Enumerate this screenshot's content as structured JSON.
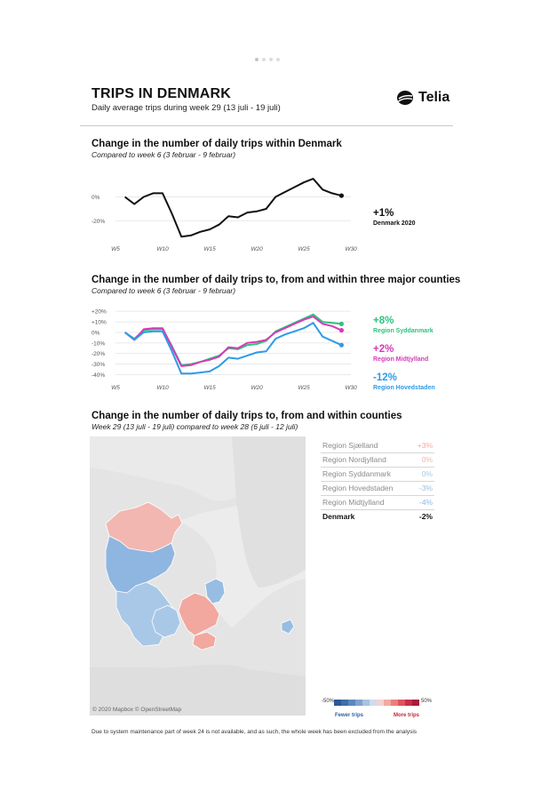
{
  "header": {
    "title": "TRIPS IN DENMARK",
    "subtitle": "Daily average trips during week 29 (13 juli - 19 juli)",
    "logo_text": "Telia"
  },
  "chart_data": [
    {
      "type": "line",
      "title": "Change in the number of daily trips within Denmark",
      "subtitle": "Compared to week 6 (3 februar - 9 februar)",
      "x": [
        6,
        7,
        8,
        9,
        10,
        11,
        12,
        13,
        14,
        15,
        16,
        17,
        18,
        19,
        20,
        21,
        22,
        23,
        24,
        25,
        26,
        27,
        28,
        29
      ],
      "series": [
        {
          "name": "Denmark 2020",
          "color": "#111111",
          "values": [
            0,
            -6,
            0,
            3,
            3,
            -14,
            -33,
            -32,
            -29,
            -27,
            -23,
            -16,
            -17,
            -13,
            -12,
            -10,
            0,
            4,
            8,
            12,
            15,
            6,
            3,
            1
          ]
        }
      ],
      "x_ticks": [
        {
          "label": "W5",
          "value": 5
        },
        {
          "label": "W10",
          "value": 10
        },
        {
          "label": "W15",
          "value": 15
        },
        {
          "label": "W20",
          "value": 20
        },
        {
          "label": "W25",
          "value": 25
        },
        {
          "label": "W30",
          "value": 30
        }
      ],
      "y_ticks": [
        {
          "label": "0%",
          "value": 0
        },
        {
          "label": "-20%",
          "value": -20
        }
      ],
      "xlim": [
        5,
        30
      ],
      "ylim": [
        -35,
        18
      ],
      "annotations": [
        {
          "big": "+1%",
          "small": "Denmark 2020",
          "color": "#111111"
        }
      ]
    },
    {
      "type": "line",
      "title": "Change in the number of daily trips to, from and within three major counties",
      "subtitle": "Compared to week 6 (3 februar - 9 februar)",
      "x": [
        6,
        7,
        8,
        9,
        10,
        11,
        12,
        13,
        14,
        15,
        16,
        17,
        18,
        19,
        20,
        21,
        22,
        23,
        24,
        25,
        26,
        27,
        28,
        29
      ],
      "series": [
        {
          "name": "Region Syddanmark",
          "color": "#2ec27e",
          "values": [
            0,
            -6,
            2,
            3,
            3,
            -13,
            -31,
            -30,
            -28,
            -25,
            -22,
            -15,
            -16,
            -12,
            -11,
            -8,
            1,
            5,
            9,
            13,
            17,
            10,
            9,
            8
          ]
        },
        {
          "name": "Region Midtjylland",
          "color": "#d63ab8",
          "values": [
            0,
            -7,
            3,
            4,
            4,
            -14,
            -32,
            -31,
            -28,
            -26,
            -23,
            -14,
            -15,
            -10,
            -9,
            -7,
            0,
            4,
            8,
            12,
            15,
            8,
            6,
            2
          ]
        },
        {
          "name": "Region Hovedstaden",
          "color": "#2d9be8",
          "values": [
            0,
            -7,
            0,
            1,
            1,
            -18,
            -39,
            -39,
            -38,
            -37,
            -32,
            -24,
            -25,
            -22,
            -19,
            -18,
            -6,
            -2,
            1,
            4,
            9,
            -4,
            -8,
            -12
          ]
        }
      ],
      "x_ticks": [
        {
          "label": "W5",
          "value": 5
        },
        {
          "label": "W10",
          "value": 10
        },
        {
          "label": "W15",
          "value": 15
        },
        {
          "label": "W20",
          "value": 20
        },
        {
          "label": "W25",
          "value": 25
        },
        {
          "label": "W30",
          "value": 30
        }
      ],
      "y_ticks": [
        {
          "label": "+20%",
          "value": 20
        },
        {
          "label": "+10%",
          "value": 10
        },
        {
          "label": "0%",
          "value": 0
        },
        {
          "label": "-10%",
          "value": -10
        },
        {
          "label": "-20%",
          "value": -20
        },
        {
          "label": "-30%",
          "value": -30
        },
        {
          "label": "-40%",
          "value": -40
        }
      ],
      "xlim": [
        5,
        30
      ],
      "ylim": [
        -43,
        21
      ],
      "annotations": [
        {
          "big": "+8%",
          "small": "Region Syddanmark",
          "color": "#2ec27e"
        },
        {
          "big": "+2%",
          "small": "Region Midtjylland",
          "color": "#d63ab8"
        },
        {
          "big": "-12%",
          "small": "Region Hovedstaden",
          "color": "#2d9be8"
        }
      ]
    }
  ],
  "map_section": {
    "title": "Change in the number of daily trips to, from and within counties",
    "subtitle": "Week 29 (13 juli - 19 juli) compared to week 28 (6 juli - 12 juli)",
    "attribution": "© 2020 Mapbox © OpenStreetMap",
    "regions": [
      {
        "name": "Region Sjælland",
        "value": "+3%",
        "color": "#f2a79f"
      },
      {
        "name": "Region Nordjylland",
        "value": "0%",
        "color": "#f2b7b0"
      },
      {
        "name": "Region Syddanmark",
        "value": "0%",
        "color": "#a9c8e8"
      },
      {
        "name": "Region Hovedstaden",
        "value": "-3%",
        "color": "#98bde3"
      },
      {
        "name": "Region Midtjylland",
        "value": "-4%",
        "color": "#8fb6e0"
      }
    ],
    "total": {
      "name": "Denmark",
      "value": "-2%"
    },
    "legend": {
      "min": "-50%",
      "max": "50%",
      "left_label": "Fewer trips",
      "right_label": "More trips",
      "colors": [
        "#2c5797",
        "#3f6ea9",
        "#5a87bc",
        "#7ea2cf",
        "#a8c2e1",
        "#cfdcee",
        "#f5d2cd",
        "#f0aaa2",
        "#e97f79",
        "#dc5460",
        "#c72f47",
        "#a91c3a"
      ]
    }
  },
  "footnote": "Due to system maintenance part of week 24 is not available, and as such, the whole week has been excluded from the analysis"
}
